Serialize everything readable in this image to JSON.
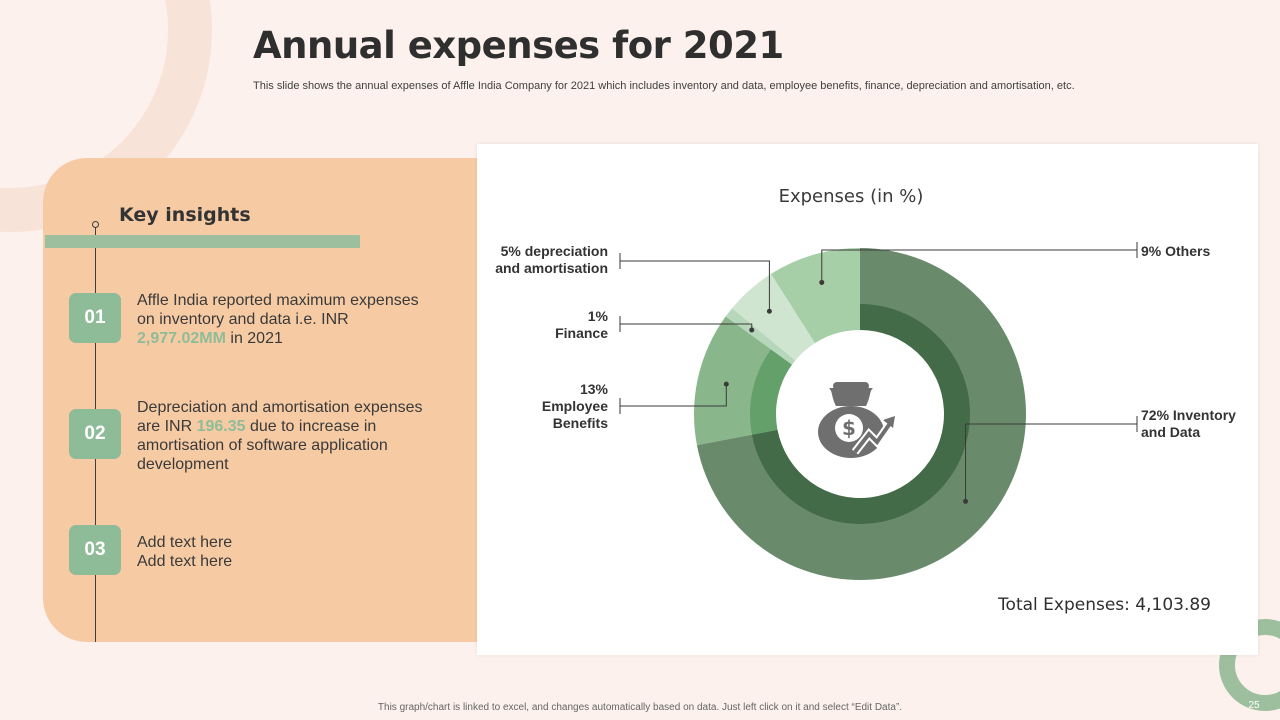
{
  "slide": {
    "title": "Annual expenses for 2021",
    "subtitle": "This slide shows the annual expenses of Affle India Company for 2021 which includes inventory and data, employee benefits, finance, depreciation and amortisation, etc.",
    "footer": "This graph/chart is linked to excel, and changes automatically based on data. Just left click on it and select “Edit Data”.",
    "page_number": "25"
  },
  "insights": {
    "heading": "Key insights",
    "items": [
      {
        "number": "01",
        "text_before": "Affle India reported maximum expenses on inventory  and data i.e. INR",
        "highlight": "2,977.02MM",
        "text_after": " in 2021"
      },
      {
        "number": "02",
        "text_before": "Depreciation and amortisation expenses are INR ",
        "highlight": "196.35",
        "text_after": " due to increase in amortisation of software application development"
      },
      {
        "number": "03",
        "line1": "Add text here",
        "line2": "Add text here"
      }
    ]
  },
  "colors": {
    "panel": "#f6cba4",
    "accent_green": "#8fbc98",
    "inventory": "#6a8a6c",
    "inventory_inner": "#436b47",
    "employee": "#8ab68c",
    "employee_inner": "#64a06a",
    "finance": "#b7d7bb",
    "depreciation": "#cfe5d0",
    "others": "#a6cfa8"
  },
  "icons": {
    "center": "money-bag-growth-icon"
  },
  "chart_data": {
    "type": "pie",
    "variant": "donut",
    "title": "Expenses (in %)",
    "categories": [
      "Inventory and Data",
      "Employee Benefits",
      "Finance",
      "depreciation and amortisation",
      "Others"
    ],
    "values": [
      72,
      13,
      1,
      5,
      9
    ],
    "unit": "%",
    "labels": [
      {
        "pct": "72%",
        "lines": [
          "72% Inventory",
          "and Data"
        ]
      },
      {
        "pct": "13%",
        "lines": [
          "13%",
          "Employee",
          "Benefits"
        ]
      },
      {
        "pct": "1%",
        "lines": [
          "1%",
          "Finance"
        ]
      },
      {
        "pct": "5%",
        "lines": [
          "5% depreciation",
          "and amortisation"
        ]
      },
      {
        "pct": "9%",
        "lines": [
          "9% Others"
        ]
      }
    ],
    "total_label": "Total Expenses: 4,103.89"
  }
}
